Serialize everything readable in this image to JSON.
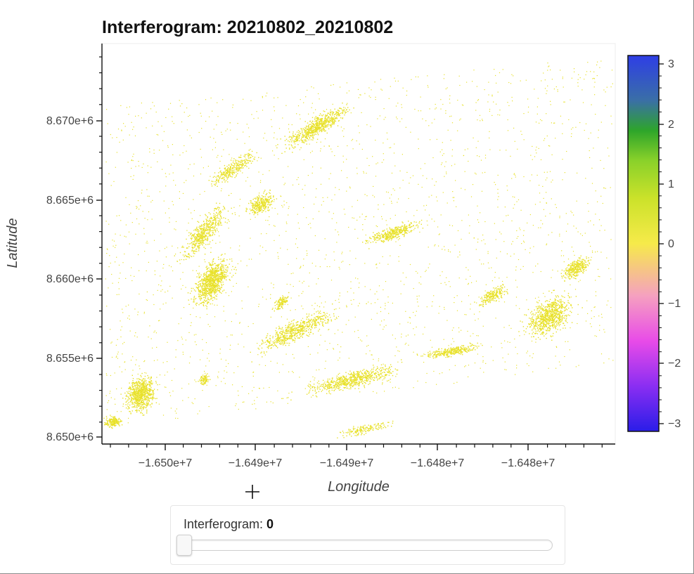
{
  "chart_data": {
    "type": "heatmap",
    "title": "Interferogram: 20210802_20210802",
    "xlabel": "Longitude",
    "ylabel": "Latitude",
    "x_ticks": [
      "−1.650e+7",
      "−1.649e+7",
      "−1.649e+7",
      "−1.648e+7",
      "−1.648e+7"
    ],
    "y_ticks": [
      "8.670e+6",
      "8.665e+6",
      "8.660e+6",
      "8.655e+6",
      "8.650e+6"
    ],
    "colorbar": {
      "ticks": [
        "3",
        "2",
        "1",
        "0",
        "−1",
        "−2",
        "−3"
      ],
      "range": [
        -3.14159,
        3.14159
      ],
      "colormap": [
        "#2a1de0",
        "#7a2ef0",
        "#e44be6",
        "#f59fc1",
        "#f6ea4a",
        "#c9e12a",
        "#8ad12a",
        "#2ea52a",
        "#3a6fa6",
        "#2e3ee6"
      ]
    },
    "value_shown": 0,
    "value_color": "#e8e12a"
  },
  "widget": {
    "slider_label": "Interferogram: ",
    "slider_value": "0",
    "slider_min": 0,
    "slider_position": 0
  }
}
